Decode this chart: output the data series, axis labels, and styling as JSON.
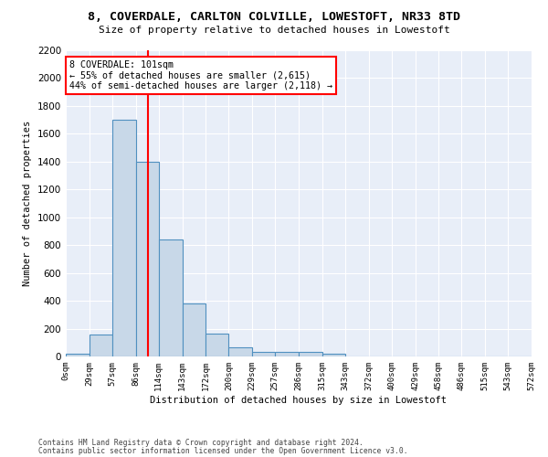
{
  "title": "8, COVERDALE, CARLTON COLVILLE, LOWESTOFT, NR33 8TD",
  "subtitle": "Size of property relative to detached houses in Lowestoft",
  "ylabel": "Number of detached properties",
  "xlabel": "Distribution of detached houses by size in Lowestoft",
  "bin_edges": [
    0,
    29,
    57,
    86,
    114,
    143,
    172,
    200,
    229,
    257,
    286,
    315,
    343,
    372,
    400,
    429,
    458,
    486,
    515,
    543,
    572
  ],
  "bar_heights": [
    20,
    155,
    1700,
    1400,
    840,
    380,
    165,
    65,
    35,
    30,
    30,
    20,
    0,
    0,
    0,
    0,
    0,
    0,
    0,
    0
  ],
  "bar_color": "#c8d8e8",
  "bar_edge_color": "#5090c0",
  "vline_x": 101,
  "vline_color": "red",
  "ylim": [
    0,
    2200
  ],
  "yticks": [
    0,
    200,
    400,
    600,
    800,
    1000,
    1200,
    1400,
    1600,
    1800,
    2000,
    2200
  ],
  "annotation_text": "8 COVERDALE: 101sqm\n← 55% of detached houses are smaller (2,615)\n44% of semi-detached houses are larger (2,118) →",
  "annotation_box_color": "white",
  "annotation_box_edge_color": "red",
  "footer_line1": "Contains HM Land Registry data © Crown copyright and database right 2024.",
  "footer_line2": "Contains public sector information licensed under the Open Government Licence v3.0.",
  "bg_color": "#e8eef8",
  "grid_color": "white"
}
